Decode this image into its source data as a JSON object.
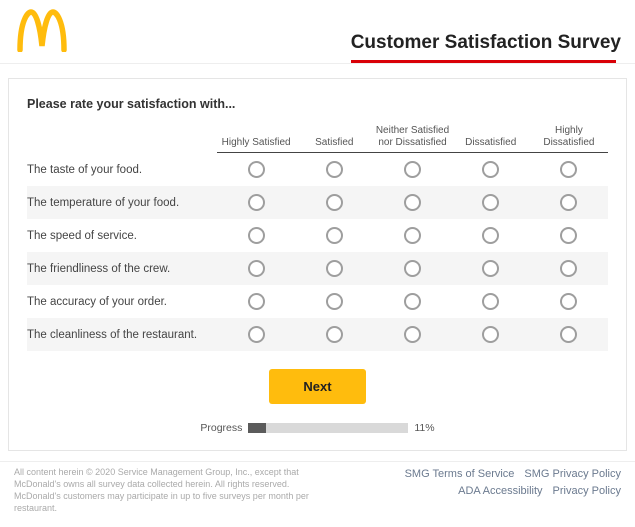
{
  "brand": {
    "name": "McDonald's",
    "logo_color": "#ffbc0d",
    "accent_color": "#d90007"
  },
  "header": {
    "title": "Customer Satisfaction Survey"
  },
  "survey": {
    "prompt": "Please rate your satisfaction with...",
    "scale_labels": [
      "Highly Satisfied",
      "Satisfied",
      "Neither Satisfied nor Dissatisfied",
      "Dissatisfied",
      "Highly Dissatisfied"
    ],
    "questions": [
      "The taste of your food.",
      "The temperature of your food.",
      "The speed of service.",
      "The friendliness of the crew.",
      "The accuracy of your order.",
      "The cleanliness of the restaurant."
    ],
    "next_label": "Next",
    "next_bg": "#ffbc0d"
  },
  "progress": {
    "label": "Progress",
    "percent": 11,
    "percent_text": "11%"
  },
  "footer": {
    "copyright": "All content herein © 2020 Service Management Group, Inc., except that McDonald's owns all survey data collected herein. All rights reserved. McDonald's customers may participate in up to five surveys per month per restaurant.",
    "links_row1": [
      "SMG Terms of Service",
      "SMG Privacy Policy"
    ],
    "links_row2": [
      "ADA Accessibility",
      "Privacy Policy"
    ]
  }
}
